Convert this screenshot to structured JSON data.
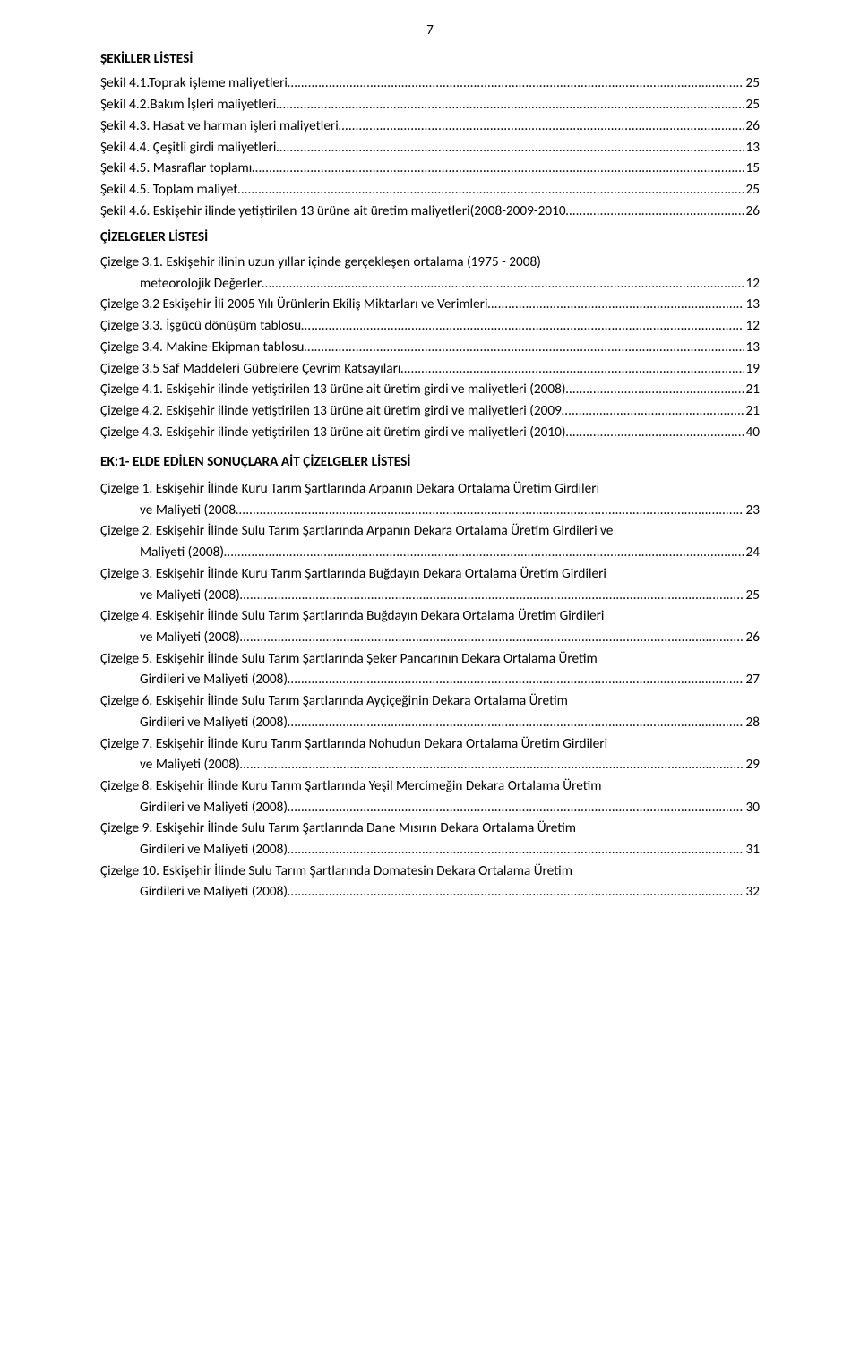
{
  "pageNumber": "7",
  "sekillerHeading": "ŞEKİLLER LİSTESİ",
  "sekiller": [
    {
      "label": "Şekil  4.1.Toprak işleme maliyetleri",
      "page": "25"
    },
    {
      "label": "Şekil 4.2.Bakım İşleri maliyetleri",
      "page": "25"
    },
    {
      "label": "Şekil 4.3. Hasat ve harman işleri maliyetleri",
      "page": "26"
    },
    {
      "label": "Şekil 4.4. Çeşitli girdi maliyetleri",
      "page": "13"
    },
    {
      "label": "Şekil 4.5. Masraflar toplamı",
      "page": "15"
    },
    {
      "label": "Şekil 4.5. Toplam maliyet",
      "page": "25"
    },
    {
      "label": "Şekil 4.6. Eskişehir ilinde yetiştirilen 13 ürüne ait üretim maliyetleri(2008-2009-2010",
      "page": "26"
    }
  ],
  "cizelgelerHeading": "ÇİZELGELER LİSTESİ",
  "cizelgeler": [
    {
      "wrap": true,
      "first": "Çizelge 3.1. Eskişehir ilinin uzun yıllar içinde gerçekleşen ortalama (1975 - 2008)",
      "secondIndent": true,
      "second": "meteorolojik  Değerler",
      "page": "12"
    },
    {
      "label": "Çizelge 3.2 Eskişehir İli 2005 Yılı Ürünlerin Ekiliş Miktarları ve Verimleri",
      "page": "13"
    },
    {
      "label": "Çizelge 3.3. İşgücü dönüşüm tablosu",
      "page": "12"
    },
    {
      "label": "Çizelge 3.4. Makine-Ekipman tablosu",
      "page": "13"
    },
    {
      "label": "Çizelge 3.5 Saf Maddeleri Gübrelere Çevrim Katsayıları",
      "page": "19"
    },
    {
      "label": "Çizelge 4.1. Eskişehir ilinde yetiştirilen 13 ürüne ait üretim girdi ve maliyetleri (2008)",
      "page": "21"
    },
    {
      "label": "Çizelge 4.2. Eskişehir ilinde yetiştirilen 13 ürüne ait üretim girdi ve maliyetleri (2009",
      "page": "21"
    },
    {
      "label": "Çizelge 4.3. Eskişehir ilinde yetiştirilen 13 ürüne ait üretim girdi ve maliyetleri (2010)",
      "page": "40"
    }
  ],
  "ekHeading": "EK:1- ELDE EDİLEN SONUÇLARA AİT ÇİZELGELER LİSTESİ",
  "ekCizelgeler": [
    {
      "wrap": true,
      "first": "Çizelge 1. Eskişehir İlinde Kuru Tarım Şartlarında Arpanın Dekara Ortalama Üretim Girdileri",
      "secondIndent": true,
      "second": "ve  Maliyeti (2008",
      "page": "23"
    },
    {
      "wrap": true,
      "first": "Çizelge 2. Eskişehir İlinde Sulu Tarım Şartlarında Arpanın Dekara Ortalama Üretim Girdileri ve",
      "secondIndent": true,
      "second": "Maliyeti (2008)",
      "page": "24"
    },
    {
      "wrap": true,
      "first": "Çizelge 3. Eskişehir İlinde Kuru Tarım Şartlarında Buğdayın Dekara Ortalama Üretim Girdileri",
      "secondIndent": true,
      "second": "ve Maliyeti (2008)",
      "page": "25"
    },
    {
      "wrap": true,
      "first": "Çizelge 4. Eskişehir İlinde Sulu Tarım Şartlarında Buğdayın Dekara Ortalama Üretim Girdileri",
      "secondIndent": true,
      "second": "ve Maliyeti (2008)",
      "page": "26"
    },
    {
      "wrap": true,
      "first": "Çizelge 5. Eskişehir İlinde Sulu Tarım Şartlarında Şeker Pancarının Dekara Ortalama Üretim",
      "secondIndent": true,
      "second": "Girdileri ve Maliyeti (2008)",
      "page": "27"
    },
    {
      "wrap": true,
      "first": "Çizelge 6. Eskişehir İlinde Sulu Tarım Şartlarında Ayçiçeğinin Dekara Ortalama Üretim",
      "secondIndent": true,
      "second": "Girdileri ve Maliyeti (2008)",
      "page": "28"
    },
    {
      "wrap": true,
      "first": "Çizelge 7. Eskişehir İlinde Kuru Tarım Şartlarında Nohudun Dekara Ortalama Üretim Girdileri",
      "secondIndent": true,
      "second": "ve Maliyeti (2008)",
      "page": "29"
    },
    {
      "wrap": true,
      "first": "Çizelge 8. Eskişehir İlinde Kuru Tarım Şartlarında Yeşil Mercimeğin Dekara Ortalama Üretim",
      "secondIndent": true,
      "second": "Girdileri ve Maliyeti (2008)",
      "page": "30"
    },
    {
      "wrap": true,
      "first": "Çizelge 9. Eskişehir İlinde Sulu Tarım Şartlarında Dane Mısırın Dekara Ortalama Üretim",
      "secondIndent": true,
      "second": "Girdileri ve Maliyeti (2008)",
      "page": "31"
    },
    {
      "wrap": true,
      "first": "Çizelge 10. Eskişehir İlinde Sulu Tarım Şartlarında Domatesin Dekara Ortalama Üretim",
      "secondIndent": true,
      "second": "Girdileri ve Maliyeti (2008)",
      "page": "32"
    }
  ],
  "leaderDots": "…………………………………………………………………………………………………………………………………………………………………………………………"
}
